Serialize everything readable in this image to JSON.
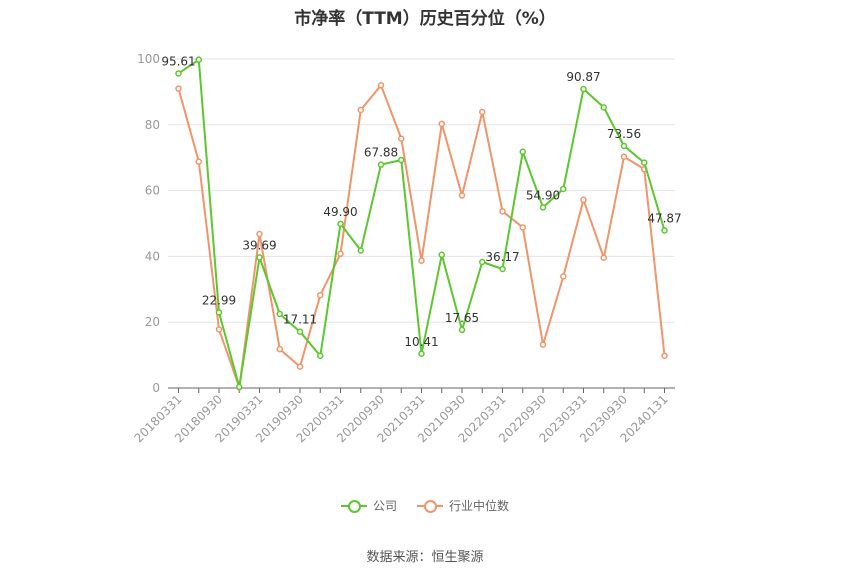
{
  "chart_data": {
    "type": "line",
    "title": "市净率（TTM）历史百分位（%）",
    "source": "数据来源：恒生聚源",
    "ylim": [
      0,
      100
    ],
    "yticks": [
      0,
      20,
      40,
      60,
      80,
      100
    ],
    "grid": true,
    "legend_position": "bottom-center",
    "x_tick_labels": [
      "20180331",
      "20180930",
      "20190331",
      "20190930",
      "20200331",
      "20200930",
      "20210331",
      "20210930",
      "20220331",
      "20220930",
      "20230331",
      "20230930",
      "20240131"
    ],
    "series": [
      {
        "name": "公司",
        "color": "#5cc72e",
        "values": [
          95.61,
          99.8,
          22.99,
          0.3,
          39.69,
          22.5,
          17.11,
          9.8,
          49.9,
          41.8,
          67.88,
          69.3,
          10.41,
          40.5,
          17.65,
          38.3,
          36.17,
          71.8,
          54.9,
          60.5,
          90.87,
          85.3,
          73.56,
          68.5,
          47.87
        ],
        "data_labels": [
          {
            "index": 0,
            "text": "95.61"
          },
          {
            "index": 2,
            "text": "22.99"
          },
          {
            "index": 4,
            "text": "39.69"
          },
          {
            "index": 6,
            "text": "17.11"
          },
          {
            "index": 8,
            "text": "49.90"
          },
          {
            "index": 10,
            "text": "67.88"
          },
          {
            "index": 12,
            "text": "10.41"
          },
          {
            "index": 14,
            "text": "17.65"
          },
          {
            "index": 16,
            "text": "36.17"
          },
          {
            "index": 18,
            "text": "54.90"
          },
          {
            "index": 20,
            "text": "90.87"
          },
          {
            "index": 22,
            "text": "73.56"
          },
          {
            "index": 24,
            "text": "47.87"
          }
        ]
      },
      {
        "name": "行业中位数",
        "color": "#f0956a",
        "values": [
          91.0,
          68.8,
          17.8,
          0.2,
          46.8,
          11.8,
          6.5,
          28.2,
          40.8,
          84.5,
          92.0,
          75.8,
          38.7,
          80.3,
          58.5,
          83.9,
          53.7,
          48.8,
          13.2,
          33.9,
          57.2,
          39.6,
          70.3,
          66.5,
          9.8
        ]
      }
    ]
  },
  "colors": {
    "company": "#5cc72e",
    "industry": "#f0956a",
    "grid": "#e6e6e6",
    "axis": "#666666",
    "tick_text": "#999999"
  }
}
